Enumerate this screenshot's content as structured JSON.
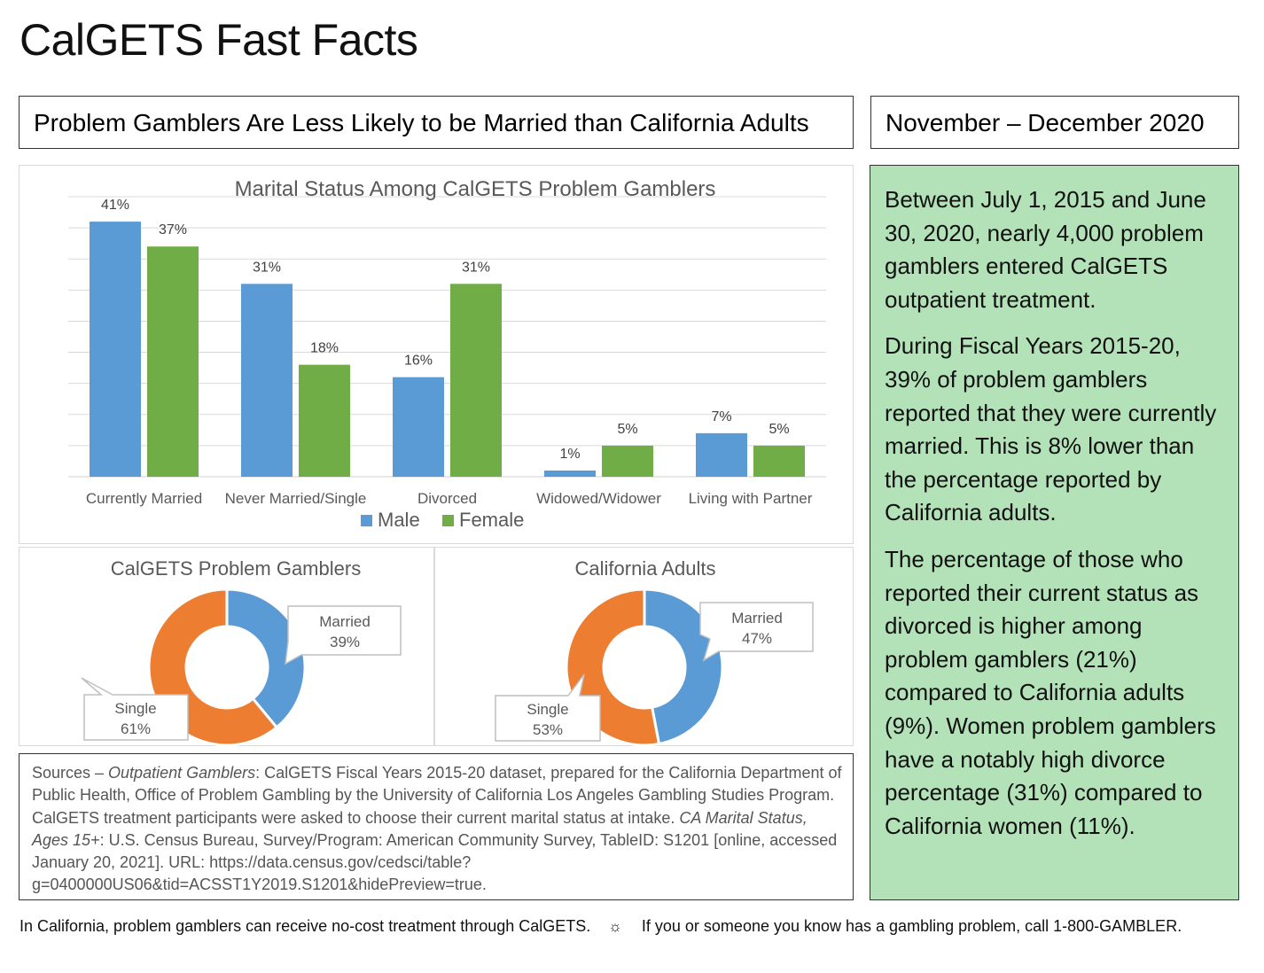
{
  "page_title": "CalGETS Fast Facts",
  "headline": "Problem Gamblers Are Less Likely to be Married than California Adults",
  "date_range": "November – December 2020",
  "facts": [
    "Between July 1, 2015 and June 30, 2020, nearly 4,000 problem gamblers entered CalGETS outpatient treatment.",
    "During Fiscal Years 2015-20, 39% of problem gamblers reported that they were currently married. This is 8% lower than the percentage reported by California adults.",
    "The percentage of those who reported their current status as divorced is higher among problem gamblers (21%) compared to California adults (9%). Women problem gamblers have a notably high divorce percentage (31%) compared to California women (11%)."
  ],
  "sources": {
    "prefix": "Sources – ",
    "outpatient_label": "Outpatient Gamblers",
    "outpatient_text": ": CalGETS Fiscal Years 2015-20 dataset, prepared for the California Department of Public Health, Office of Problem Gambling by the University of California Los Angeles Gambling Studies Program. CalGETS treatment participants were asked to choose their current marital status at intake. ",
    "census_label": "CA Marital Status, Ages 15+",
    "census_text": ": U.S. Census Bureau, Survey/Program: American Community Survey, TableID: S1201 [online, accessed January 20, 2021]. URL: https://data.census.gov/cedsci/table?g=0400000US06&tid=ACSST1Y2019.S1201&hidePreview=true."
  },
  "footer": {
    "left": "In California, problem gamblers can receive no-cost treatment through CalGETS.",
    "separator": "☼",
    "right": "If you or someone you know has a gambling problem, call 1-800-GAMBLER."
  },
  "colors": {
    "male": "#5b9bd5",
    "female": "#70ad47",
    "married": "#5b9bd5",
    "single": "#ed7d31",
    "facts_bg": "#b4e2b8"
  },
  "chart_data": [
    {
      "type": "bar",
      "title": "Marital Status Among CalGETS Problem Gamblers",
      "categories": [
        "Currently Married",
        "Never Married/Single",
        "Divorced",
        "Widowed/Widower",
        "Living with Partner"
      ],
      "series": [
        {
          "name": "Male",
          "values": [
            41,
            31,
            16,
            1,
            7
          ]
        },
        {
          "name": "Female",
          "values": [
            37,
            18,
            31,
            5,
            5
          ]
        }
      ],
      "data_labels": [
        [
          "41%",
          "31%",
          "16%",
          "1%",
          "7%"
        ],
        [
          "37%",
          "18%",
          "31%",
          "5%",
          "5%"
        ]
      ],
      "ylim": [
        0,
        45
      ],
      "grid": true,
      "legend": "bottom"
    },
    {
      "type": "pie",
      "title": "CalGETS Problem Gamblers",
      "labels": [
        "Married",
        "Single"
      ],
      "values": [
        39,
        61
      ],
      "value_labels": [
        "39%",
        "61%"
      ]
    },
    {
      "type": "pie",
      "title": "California Adults",
      "labels": [
        "Married",
        "Single"
      ],
      "values": [
        47,
        53
      ],
      "value_labels": [
        "47%",
        "53%"
      ]
    }
  ]
}
